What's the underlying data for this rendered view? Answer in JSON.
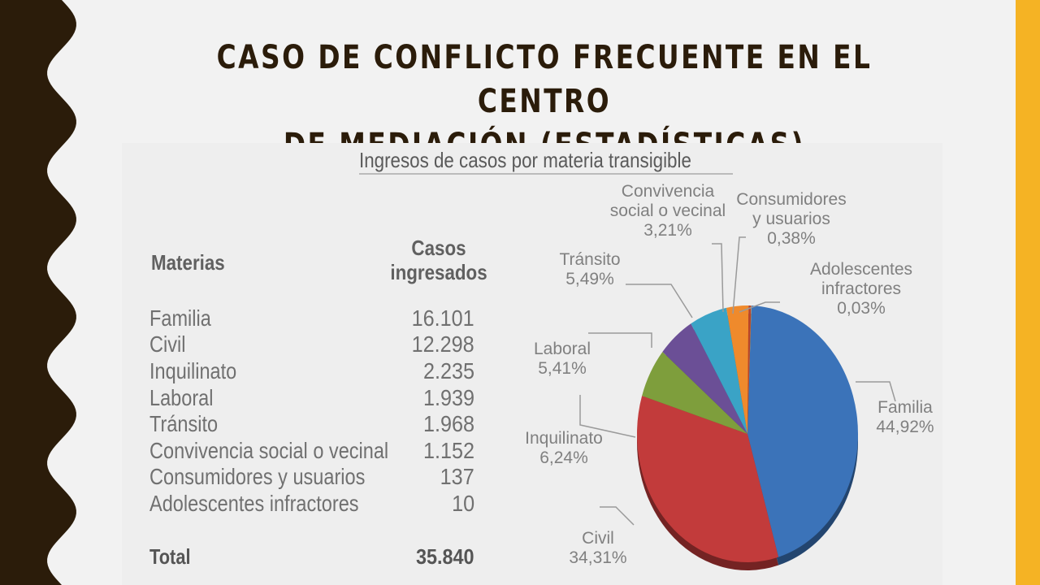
{
  "slide": {
    "title_line1": "CASO DE CONFLICTO FRECUENTE EN EL CENTRO",
    "title_line2": "DE MEDIACIÓN (ESTADÍSTICAS)"
  },
  "colors": {
    "left_border": "#2b1c0a",
    "right_bar": "#f5b324",
    "background": "#f2f2f2"
  },
  "chart_data": {
    "type": "pie",
    "title": "Ingresos de casos por materia transigible",
    "table": {
      "header_materias": "Materias",
      "header_casos_1": "Casos",
      "header_casos_2": "ingresados",
      "rows": [
        {
          "materia": "Familia",
          "casos": "16.101"
        },
        {
          "materia": "Civil",
          "casos": "12.298"
        },
        {
          "materia": "Inquilinato",
          "casos": "2.235"
        },
        {
          "materia": "Laboral",
          "casos": "1.939"
        },
        {
          "materia": "Tránsito",
          "casos": "1.968"
        },
        {
          "materia": "Convivencia social o vecinal",
          "casos": "1.152"
        },
        {
          "materia": "Consumidores y usuarios",
          "casos": "137"
        },
        {
          "materia": "Adolescentes infractores",
          "casos": "10"
        }
      ],
      "total_label": "Total",
      "total_value": "35.840"
    },
    "slices": [
      {
        "label_lines": [
          "Familia"
        ],
        "pct_text": "44,92%",
        "value": 44.92,
        "color": "#3b73b9"
      },
      {
        "label_lines": [
          "Civil"
        ],
        "pct_text": "34,31%",
        "value": 34.31,
        "color": "#c23b3b"
      },
      {
        "label_lines": [
          "Inquilinato"
        ],
        "pct_text": "6,24%",
        "value": 6.24,
        "color": "#7e9e3c"
      },
      {
        "label_lines": [
          "Laboral"
        ],
        "pct_text": "5,41%",
        "value": 5.41,
        "color": "#6b4f96"
      },
      {
        "label_lines": [
          "Tránsito"
        ],
        "pct_text": "5,49%",
        "value": 5.49,
        "color": "#3aa3c6"
      },
      {
        "label_lines": [
          "Convivencia",
          "social o vecinal"
        ],
        "pct_text": "3,21%",
        "value": 3.21,
        "color": "#ef8a2c"
      },
      {
        "label_lines": [
          "Consumidores",
          "y usuarios"
        ],
        "pct_text": "0,38%",
        "value": 0.38,
        "color": "#b8452a"
      },
      {
        "label_lines": [
          "Adolescentes",
          "infractores"
        ],
        "pct_text": "0,03%",
        "value": 0.03,
        "color": "#f2c94c"
      }
    ]
  }
}
